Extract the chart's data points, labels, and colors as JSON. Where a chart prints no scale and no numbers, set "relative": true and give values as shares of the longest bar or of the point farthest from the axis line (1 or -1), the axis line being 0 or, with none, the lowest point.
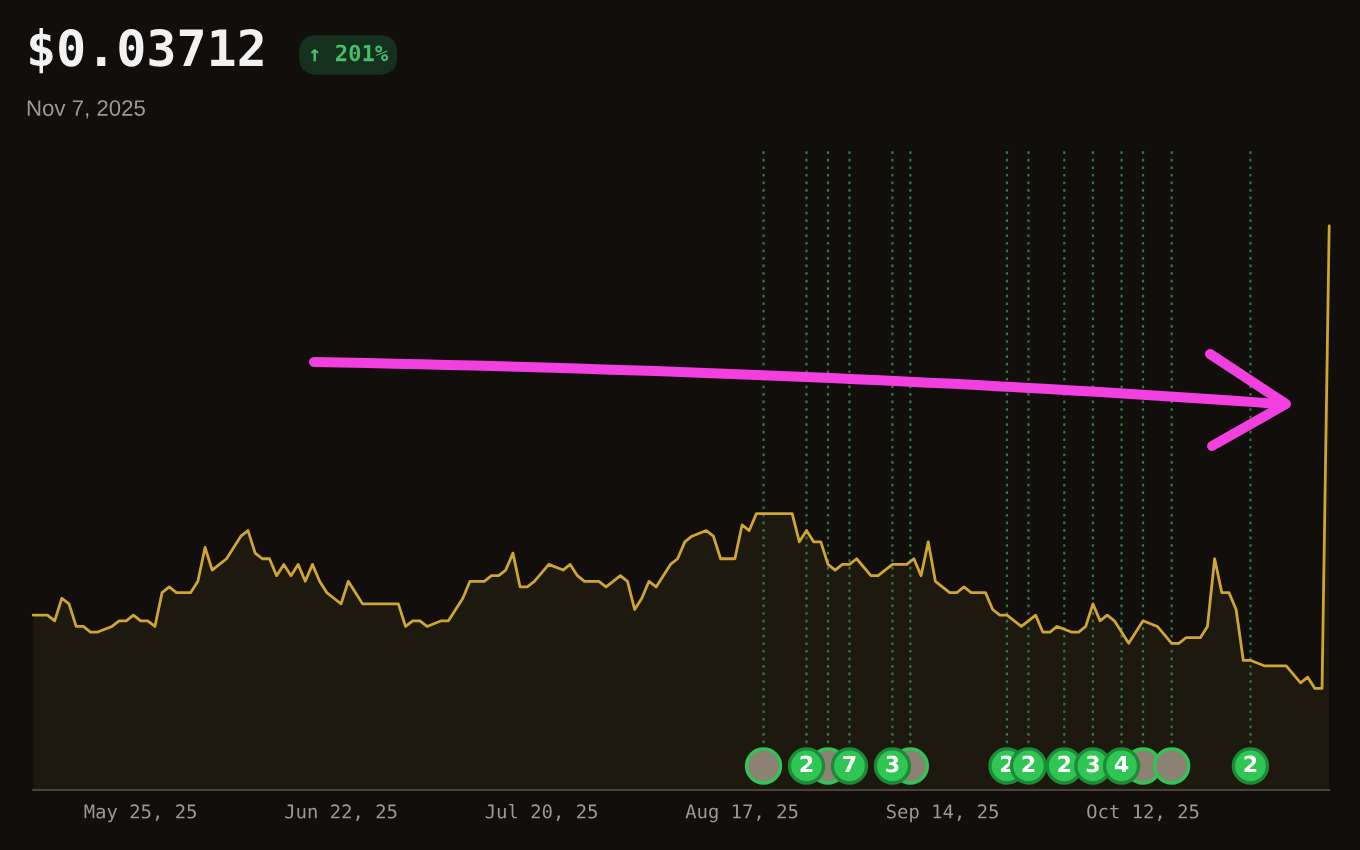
{
  "chart_data": {
    "type": "area",
    "title": "$0.03712",
    "subtitle": "Nov 7, 2025",
    "annotations": [
      "↑ 201%"
    ],
    "relative": true,
    "tick_labels": "x",
    "x": [
      "2025-05-10",
      "2025-05-11",
      "2025-05-12",
      "2025-05-13",
      "2025-05-14",
      "2025-05-15",
      "2025-05-16",
      "2025-05-17",
      "2025-05-18",
      "2025-05-19",
      "2025-05-21",
      "2025-05-22",
      "2025-05-23",
      "2025-05-24",
      "2025-05-25",
      "2025-05-26",
      "2025-05-27",
      "2025-05-28",
      "2025-05-29",
      "2025-05-30",
      "2025-05-31",
      "2025-06-01",
      "2025-06-02",
      "2025-06-03",
      "2025-06-04",
      "2025-06-05",
      "2025-06-06",
      "2025-06-07",
      "2025-06-08",
      "2025-06-09",
      "2025-06-10",
      "2025-06-11",
      "2025-06-12",
      "2025-06-13",
      "2025-06-14",
      "2025-06-15",
      "2025-06-16",
      "2025-06-17",
      "2025-06-18",
      "2025-06-19",
      "2025-06-20",
      "2025-06-21",
      "2025-06-22",
      "2025-06-23",
      "2025-06-24",
      "2025-06-25",
      "2025-06-27",
      "2025-06-29",
      "2025-06-30",
      "2025-07-01",
      "2025-07-02",
      "2025-07-03",
      "2025-07-04",
      "2025-07-06",
      "2025-07-07",
      "2025-07-09",
      "2025-07-10",
      "2025-07-11",
      "2025-07-12",
      "2025-07-13",
      "2025-07-14",
      "2025-07-15",
      "2025-07-16",
      "2025-07-17",
      "2025-07-18",
      "2025-07-19",
      "2025-07-21",
      "2025-07-23",
      "2025-07-24",
      "2025-07-25",
      "2025-07-26",
      "2025-07-28",
      "2025-07-29",
      "2025-07-30",
      "2025-07-31",
      "2025-08-01",
      "2025-08-02",
      "2025-08-03",
      "2025-08-04",
      "2025-08-05",
      "2025-08-06",
      "2025-08-07",
      "2025-08-08",
      "2025-08-09",
      "2025-08-10",
      "2025-08-12",
      "2025-08-13",
      "2025-08-14",
      "2025-08-16",
      "2025-08-17",
      "2025-08-18",
      "2025-08-19",
      "2025-08-20",
      "2025-08-21",
      "2025-08-23",
      "2025-08-24",
      "2025-08-25",
      "2025-08-26",
      "2025-08-27",
      "2025-08-28",
      "2025-08-29",
      "2025-08-30",
      "2025-08-31",
      "2025-09-01",
      "2025-09-02",
      "2025-09-04",
      "2025-09-05",
      "2025-09-07",
      "2025-09-09",
      "2025-09-10",
      "2025-09-11",
      "2025-09-12",
      "2025-09-13",
      "2025-09-15",
      "2025-09-16",
      "2025-09-17",
      "2025-09-18",
      "2025-09-20",
      "2025-09-21",
      "2025-09-22",
      "2025-09-23",
      "2025-09-25",
      "2025-09-26",
      "2025-09-27",
      "2025-09-28",
      "2025-09-29",
      "2025-09-30",
      "2025-10-02",
      "2025-10-03",
      "2025-10-04",
      "2025-10-05",
      "2025-10-06",
      "2025-10-07",
      "2025-10-08",
      "2025-10-10",
      "2025-10-11",
      "2025-10-12",
      "2025-10-14",
      "2025-10-16",
      "2025-10-17",
      "2025-10-18",
      "2025-10-20",
      "2025-10-21",
      "2025-10-22",
      "2025-10-23",
      "2025-10-24",
      "2025-10-25",
      "2025-10-26",
      "2025-10-27",
      "2025-10-29",
      "2025-10-30",
      "2025-11-01",
      "2025-11-03",
      "2025-11-04",
      "2025-11-05",
      "2025-11-06",
      "2025-11-07"
    ],
    "series": [
      {
        "color": "#d1a436",
        "values": [
          0.31,
          0.31,
          0.31,
          0.3,
          0.34,
          0.33,
          0.29,
          0.29,
          0.28,
          0.28,
          0.29,
          0.3,
          0.3,
          0.31,
          0.3,
          0.3,
          0.29,
          0.35,
          0.36,
          0.35,
          0.35,
          0.35,
          0.37,
          0.43,
          0.39,
          0.4,
          0.41,
          0.43,
          0.45,
          0.46,
          0.42,
          0.41,
          0.41,
          0.38,
          0.4,
          0.38,
          0.4,
          0.37,
          0.4,
          0.37,
          0.35,
          0.34,
          0.33,
          0.37,
          0.35,
          0.33,
          0.33,
          0.33,
          0.33,
          0.29,
          0.3,
          0.3,
          0.29,
          0.3,
          0.3,
          0.34,
          0.37,
          0.37,
          0.37,
          0.38,
          0.38,
          0.39,
          0.42,
          0.36,
          0.36,
          0.37,
          0.4,
          0.39,
          0.4,
          0.38,
          0.37,
          0.37,
          0.36,
          0.37,
          0.38,
          0.37,
          0.32,
          0.34,
          0.37,
          0.36,
          0.38,
          0.4,
          0.41,
          0.44,
          0.45,
          0.46,
          0.45,
          0.41,
          0.41,
          0.47,
          0.46,
          0.49,
          0.49,
          0.49,
          0.49,
          0.49,
          0.44,
          0.46,
          0.44,
          0.44,
          0.4,
          0.39,
          0.4,
          0.4,
          0.41,
          0.38,
          0.38,
          0.4,
          0.4,
          0.41,
          0.38,
          0.44,
          0.37,
          0.35,
          0.35,
          0.36,
          0.35,
          0.35,
          0.32,
          0.31,
          0.31,
          0.29,
          0.3,
          0.31,
          0.28,
          0.28,
          0.29,
          0.28,
          0.28,
          0.29,
          0.33,
          0.3,
          0.31,
          0.3,
          0.26,
          0.28,
          0.3,
          0.29,
          0.26,
          0.26,
          0.27,
          0.27,
          0.29,
          0.41,
          0.35,
          0.35,
          0.32,
          0.23,
          0.23,
          0.22,
          0.22,
          0.22,
          0.19,
          0.2,
          0.18,
          0.18,
          1
        ]
      }
    ],
    "xlim": [
      "2025-05-10",
      "2025-11-07"
    ],
    "xticks": [
      {
        "value": "2025-05-25",
        "label": "May 25, 25"
      },
      {
        "value": "2025-06-22",
        "label": "Jun 22, 25"
      },
      {
        "value": "2025-07-20",
        "label": "Jul 20, 25"
      },
      {
        "value": "2025-08-17",
        "label": "Aug 17, 25"
      },
      {
        "value": "2025-09-14",
        "label": "Sep 14, 25"
      },
      {
        "value": "2025-10-12",
        "label": "Oct 12, 25"
      }
    ],
    "ref_lines": [
      {
        "axis": "x",
        "value": "2025-08-20",
        "label": null,
        "color": "#2b7a43",
        "line_style": "dotted"
      },
      {
        "axis": "x",
        "value": "2025-08-26",
        "label": "2",
        "color": "#2b7a43",
        "line_style": "dotted"
      },
      {
        "axis": "x",
        "value": "2025-08-29",
        "label": null,
        "color": "#2b7a43",
        "line_style": "dotted"
      },
      {
        "axis": "x",
        "value": "2025-09-01",
        "label": "7",
        "color": "#2b7a43",
        "line_style": "dotted"
      },
      {
        "axis": "x",
        "value": "2025-09-07",
        "label": "3",
        "color": "#2b7a43",
        "line_style": "dotted"
      },
      {
        "axis": "x",
        "value": "2025-09-09T12:00",
        "label": null,
        "color": "#2b7a43",
        "line_style": "dotted"
      },
      {
        "axis": "x",
        "value": "2025-09-23",
        "label": "2",
        "color": "#2b7a43",
        "line_style": "dotted"
      },
      {
        "axis": "x",
        "value": "2025-09-26",
        "label": "2",
        "color": "#2b7a43",
        "line_style": "dotted"
      },
      {
        "axis": "x",
        "value": "2025-10-01",
        "label": "2",
        "color": "#2b7a43",
        "line_style": "dotted"
      },
      {
        "axis": "x",
        "value": "2025-10-05",
        "label": "3",
        "color": "#2b7a43",
        "line_style": "dotted"
      },
      {
        "axis": "x",
        "value": "2025-10-09",
        "label": "4",
        "color": "#2b7a43",
        "line_style": "dotted"
      },
      {
        "axis": "x",
        "value": "2025-10-12",
        "label": null,
        "color": "#2b7a43",
        "line_style": "dotted"
      },
      {
        "axis": "x",
        "value": "2025-10-16",
        "label": null,
        "color": "#2b7a43",
        "line_style": "dotted"
      },
      {
        "axis": "x",
        "value": "2025-10-27",
        "label": "2",
        "color": "#2b7a43",
        "line_style": "dotted"
      }
    ]
  }
}
